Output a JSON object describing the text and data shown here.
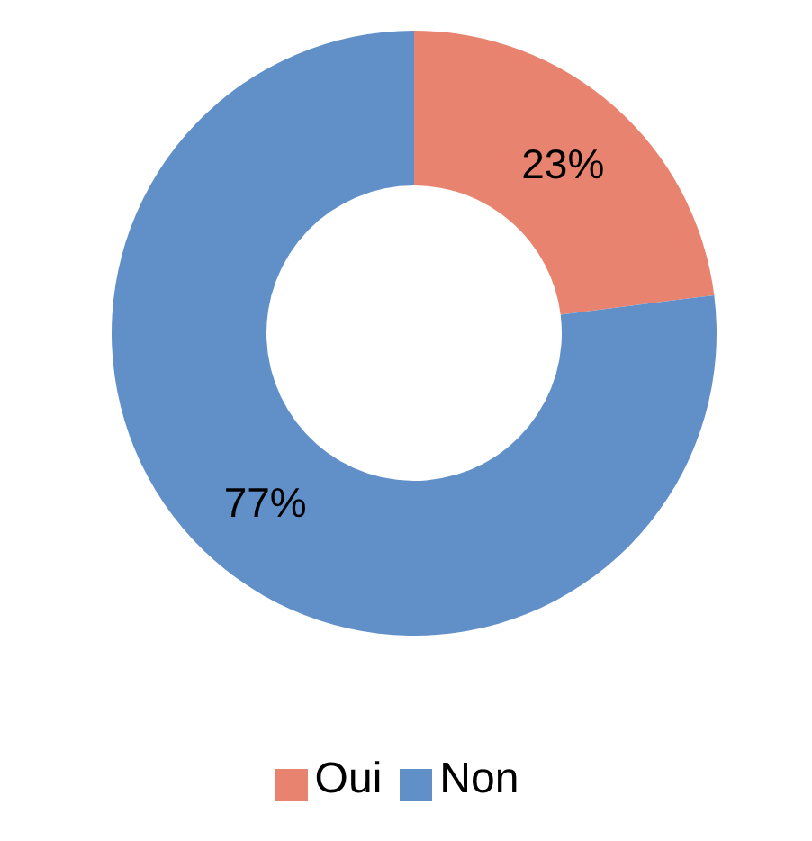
{
  "chart_data": {
    "type": "donut",
    "categories": [
      "Oui",
      "Non"
    ],
    "values": [
      23,
      77
    ],
    "colors": [
      "#e8836f",
      "#6190c9"
    ],
    "value_labels": [
      "23%",
      "77%"
    ],
    "legend": "bottom"
  }
}
